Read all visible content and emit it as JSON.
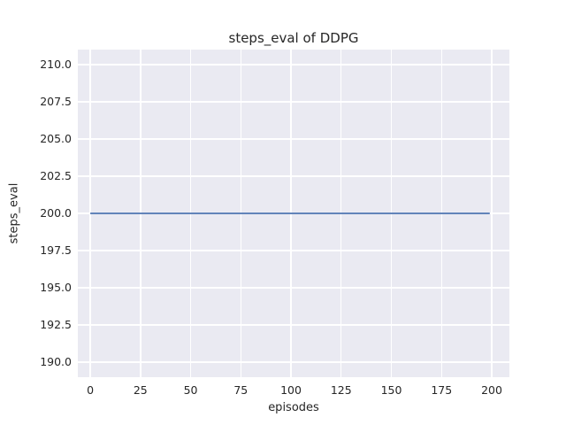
{
  "chart_data": {
    "type": "line",
    "title": "steps_eval of DDPG",
    "xlabel": "episodes",
    "ylabel": "steps_eval",
    "xlim": [
      -6.2,
      208.8
    ],
    "ylim": [
      189,
      211
    ],
    "x_ticks": [
      0,
      25,
      50,
      75,
      100,
      125,
      150,
      175,
      200
    ],
    "x_tick_labels": [
      "0",
      "25",
      "50",
      "75",
      "100",
      "125",
      "150",
      "175",
      "200"
    ],
    "y_ticks": [
      190.0,
      192.5,
      195.0,
      197.5,
      200.0,
      202.5,
      205.0,
      207.5,
      210.0
    ],
    "y_tick_labels": [
      "190.0",
      "192.5",
      "195.0",
      "197.5",
      "200.0",
      "202.5",
      "205.0",
      "207.5",
      "210.0"
    ],
    "grid": true,
    "legend": false,
    "series": [
      {
        "name": "steps_eval",
        "color": "#4C72B0",
        "x": [
          0,
          199
        ],
        "y": [
          200,
          200
        ],
        "note": "constant value 200 for all episodes 0-199"
      }
    ],
    "colors": {
      "figure_background": "#FFFFFF",
      "axes_background": "#EAEAF2",
      "gridline": "#FFFFFF",
      "text": "#262626"
    }
  }
}
